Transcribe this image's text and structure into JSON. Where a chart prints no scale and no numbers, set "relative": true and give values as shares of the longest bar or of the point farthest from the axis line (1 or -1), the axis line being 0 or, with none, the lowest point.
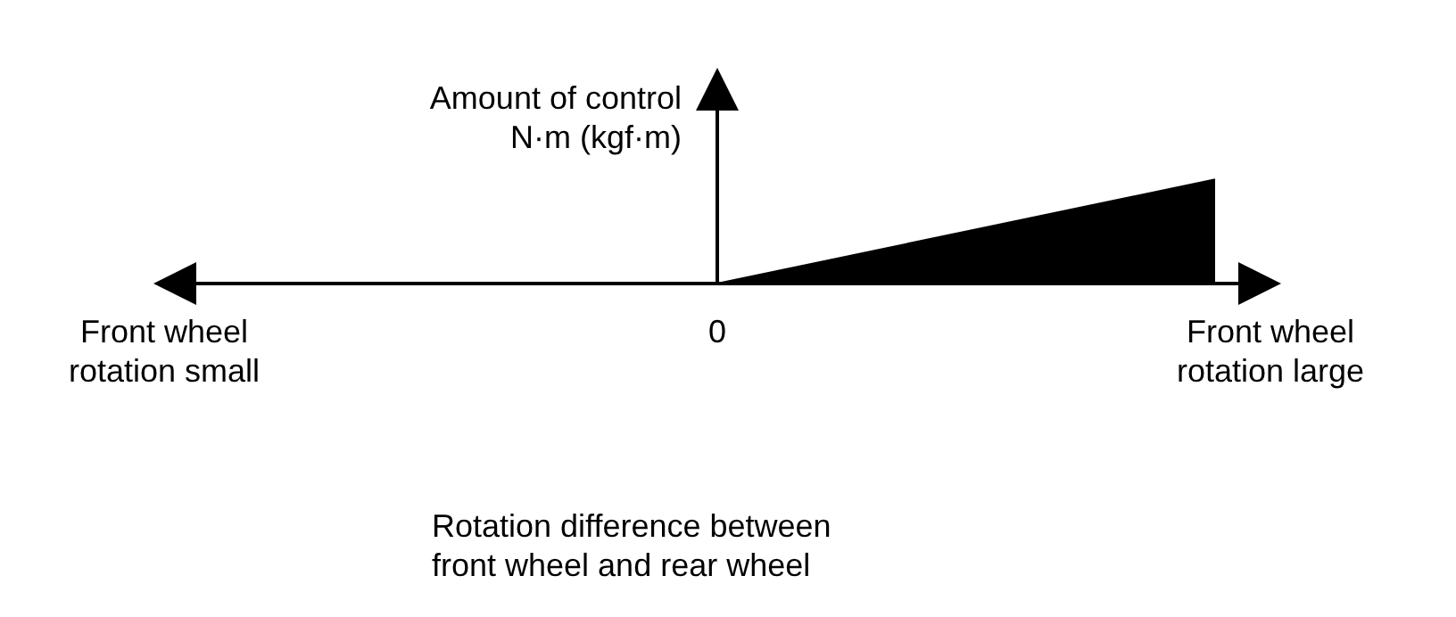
{
  "chart_data": {
    "type": "area",
    "relative": true,
    "ylabel": "Amount of control\nN·m (kgf·m)",
    "xlabel": "Rotation difference between\nfront wheel and rear wheel",
    "categories": [
      "Front wheel\nrotation small",
      null,
      null,
      null,
      null,
      null,
      null,
      null,
      null,
      null,
      "0",
      null,
      null,
      null,
      null,
      null,
      null,
      null,
      null,
      null,
      "Front wheel\nrotation large"
    ],
    "series": [
      {
        "color": "#000000",
        "values": [
          null,
          null,
          null,
          null,
          null,
          null,
          null,
          null,
          null,
          null,
          0,
          null,
          null,
          null,
          null,
          null,
          null,
          null,
          null,
          1,
          null
        ]
      }
    ]
  }
}
